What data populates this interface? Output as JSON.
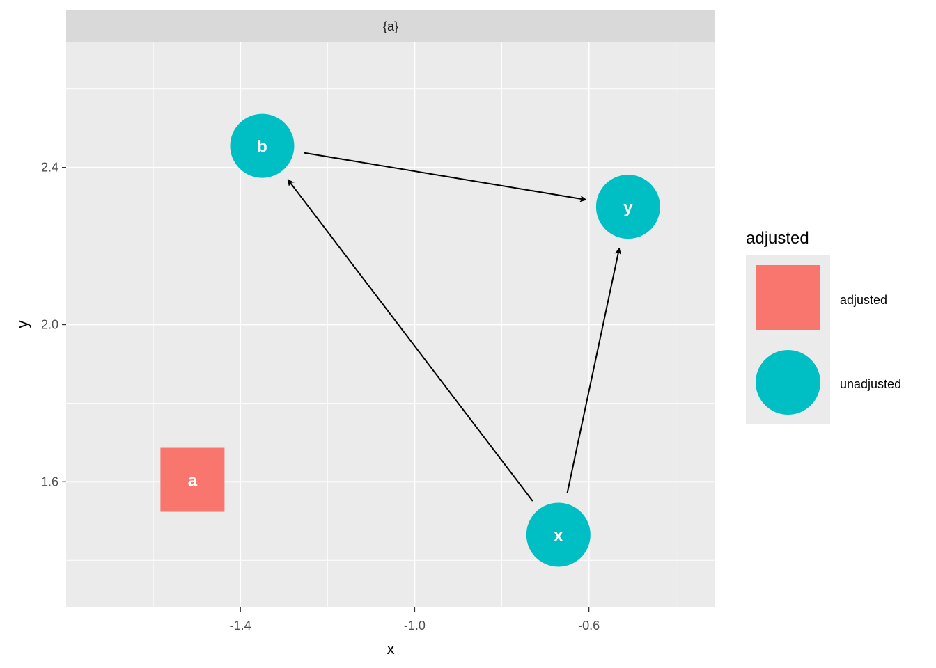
{
  "chart_data": {
    "type": "scatter",
    "subtype": "dag",
    "facet_label": "{a}",
    "xlabel": "x",
    "ylabel": "y",
    "xlim": [
      -1.8,
      -0.31
    ],
    "ylim": [
      1.28,
      2.72
    ],
    "x_ticks": [
      -1.4,
      -1.0,
      -0.6
    ],
    "x_tick_labels": [
      "-1.4",
      "-1.0",
      "-0.6"
    ],
    "y_ticks": [
      1.6,
      2.0,
      2.4
    ],
    "y_tick_labels": [
      "1.6",
      "2.0",
      "2.4"
    ],
    "grid": true,
    "nodes": [
      {
        "name": "a",
        "x": -1.51,
        "y": 1.605,
        "adjusted": "adjusted"
      },
      {
        "name": "b",
        "x": -1.35,
        "y": 2.455,
        "adjusted": "unadjusted"
      },
      {
        "name": "y",
        "x": -0.51,
        "y": 2.3,
        "adjusted": "unadjusted"
      },
      {
        "name": "x",
        "x": -0.67,
        "y": 1.465,
        "adjusted": "unadjusted"
      }
    ],
    "edges": [
      {
        "from": "b",
        "to": "y"
      },
      {
        "from": "x",
        "to": "b"
      },
      {
        "from": "x",
        "to": "y"
      }
    ],
    "legend": {
      "title": "adjusted",
      "position": "right",
      "entries": [
        {
          "label": "adjusted",
          "shape": "square",
          "color": "#F8766D"
        },
        {
          "label": "unadjusted",
          "shape": "circle",
          "color": "#00BFC4"
        }
      ]
    }
  },
  "colors": {
    "panel_background": "#EBEBEB",
    "strip_background": "#D9D9D9",
    "grid": "#FFFFFF",
    "adjusted": "#F8766D",
    "unadjusted": "#00BFC4",
    "edge": "#000000"
  }
}
